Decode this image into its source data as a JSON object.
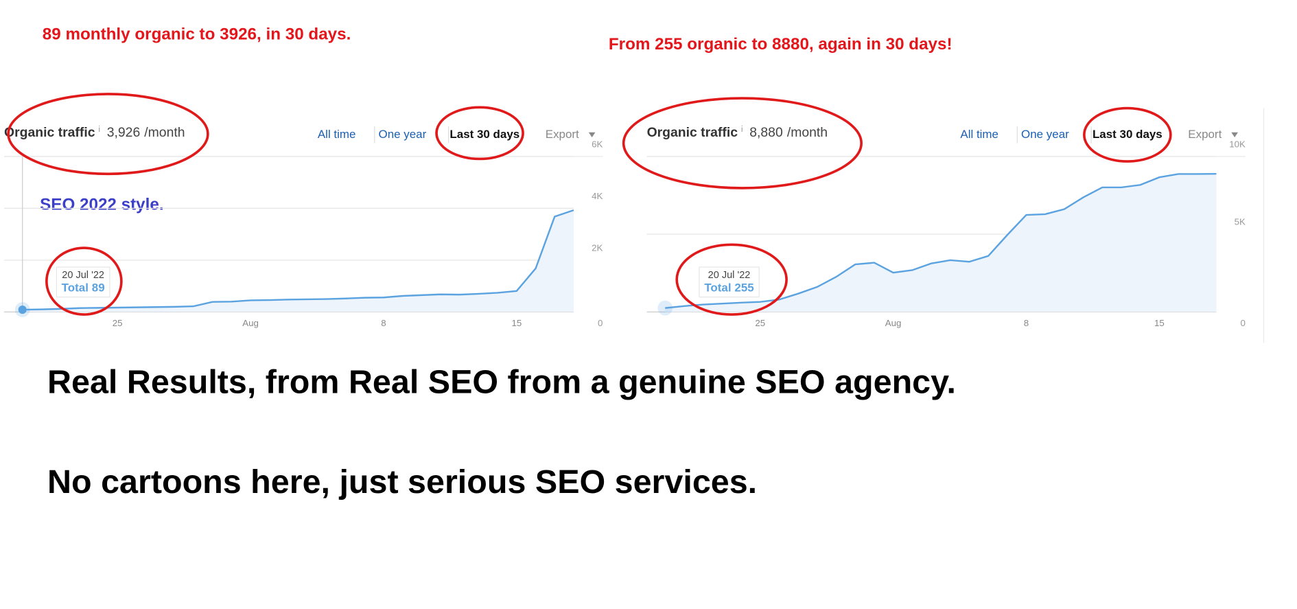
{
  "captions": {
    "left": "89 monthly organic to 3926, in 30 days.",
    "right": "From 255 organic to 8880, again in 30 days!",
    "style_note": "SEO 2022 style.",
    "headline": "Real Results, from Real SEO from a genuine SEO agency.",
    "subline": "No cartoons here, just serious SEO services."
  },
  "chart_data": [
    {
      "type": "line",
      "area": true,
      "color": "#5ba3e0",
      "fill": "#eef4fb",
      "title": "Organic traffic",
      "info": "i",
      "metric": {
        "value": 3926,
        "label": "3,926",
        "unit": "/month"
      },
      "tabs": [
        "All time",
        "One year",
        "Last 30 days"
      ],
      "active_tab": 2,
      "export": "Export",
      "categories": [
        null,
        null,
        null,
        null,
        null,
        "25",
        null,
        null,
        null,
        null,
        null,
        null,
        "Aug",
        null,
        null,
        null,
        null,
        null,
        null,
        "8",
        null,
        null,
        null,
        null,
        null,
        null,
        "15",
        null,
        null,
        null
      ],
      "values": [
        89,
        100,
        120,
        150,
        160,
        170,
        180,
        190,
        200,
        220,
        390,
        400,
        450,
        460,
        480,
        490,
        500,
        520,
        550,
        560,
        620,
        650,
        680,
        670,
        700,
        740,
        810,
        1680,
        3680,
        3926
      ],
      "ylim": [
        0,
        6000
      ],
      "yticks": [
        0,
        {
          "value": 2000,
          "label": "2K"
        },
        {
          "value": 4000,
          "label": "4K"
        },
        {
          "value": 6000,
          "label": "6K"
        }
      ],
      "grid": true,
      "tooltip": {
        "date": "20 Jul '22",
        "series": "Total",
        "value": 89
      },
      "hover_index": 0
    },
    {
      "type": "line",
      "area": true,
      "color": "#5ba3e0",
      "fill": "#eef4fb",
      "title": "Organic traffic",
      "info": "i",
      "metric": {
        "value": 8880,
        "label": "8,880",
        "unit": "/month"
      },
      "tabs": [
        "All time",
        "One year",
        "Last 30 days"
      ],
      "active_tab": 2,
      "export": "Export",
      "categories": [
        null,
        null,
        null,
        null,
        null,
        "25",
        null,
        null,
        null,
        null,
        null,
        null,
        "Aug",
        null,
        null,
        null,
        null,
        null,
        null,
        "8",
        null,
        null,
        null,
        null,
        null,
        null,
        "15",
        null,
        null,
        null
      ],
      "values": [
        255,
        380,
        480,
        540,
        600,
        650,
        800,
        1180,
        1610,
        2260,
        3060,
        3170,
        2530,
        2690,
        3120,
        3330,
        3230,
        3600,
        4950,
        6240,
        6290,
        6610,
        7370,
        8010,
        8010,
        8170,
        8660,
        8870,
        8870,
        8880
      ],
      "ylim": [
        0,
        10000
      ],
      "yticks": [
        0,
        {
          "value": 5000,
          "label": "5K"
        },
        {
          "value": 10000,
          "label": "10K"
        }
      ],
      "grid": true,
      "tooltip": {
        "date": "20 Jul '22",
        "series": "Total",
        "value": 255
      },
      "hover_index": 0
    }
  ]
}
